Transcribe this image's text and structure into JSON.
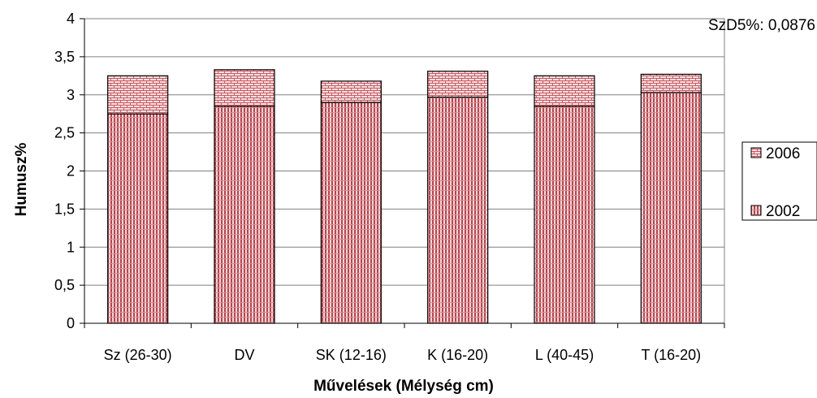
{
  "chart_data": {
    "type": "bar",
    "stacked": true,
    "categories": [
      "Sz (26-30)",
      "DV",
      "SK (12-16)",
      "K (16-20)",
      "L (40-45)",
      "T (16-20)"
    ],
    "series": [
      {
        "name": "2002",
        "values": [
          2.75,
          2.85,
          2.9,
          2.97,
          2.85,
          3.03
        ],
        "color": "#b5464f",
        "pattern": "vertical-lines"
      },
      {
        "name": "2006",
        "values": [
          0.5,
          0.48,
          0.28,
          0.34,
          0.4,
          0.24
        ],
        "color": "#c95a63",
        "pattern": "brick"
      }
    ],
    "xlabel": "Művelések (Mélység cm)",
    "ylabel": "Humusz%",
    "ylim": [
      0,
      4
    ],
    "yticks": [
      "0",
      "0,5",
      "1",
      "1,5",
      "2",
      "2,5",
      "3",
      "3,5",
      "4"
    ],
    "grid": true,
    "legend_position": "right",
    "annotation": "SzD5%: 0,0876"
  }
}
